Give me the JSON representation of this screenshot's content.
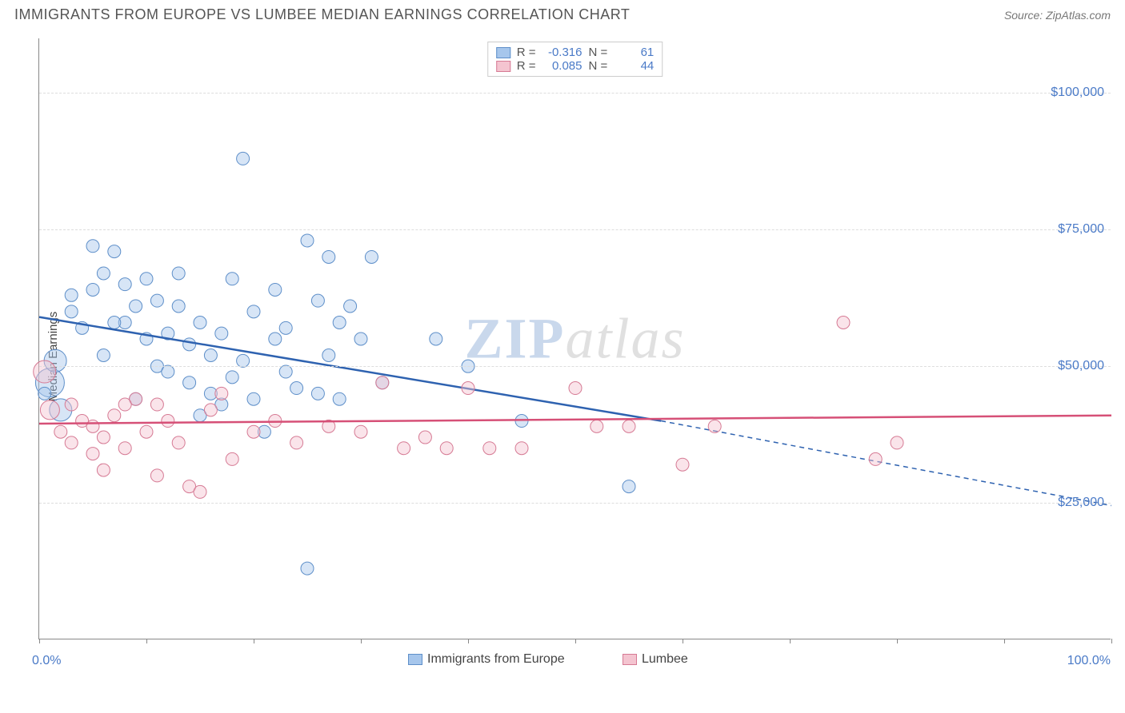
{
  "header": {
    "title": "IMMIGRANTS FROM EUROPE VS LUMBEE MEDIAN EARNINGS CORRELATION CHART",
    "source": "Source: ZipAtlas.com"
  },
  "watermark": {
    "zip": "ZIP",
    "atlas": "atlas"
  },
  "chart": {
    "type": "scatter",
    "ylabel": "Median Earnings",
    "xlim": [
      0,
      100
    ],
    "ylim": [
      0,
      110000
    ],
    "background_color": "#ffffff",
    "grid_color": "#dddddd",
    "axis_color": "#888888",
    "yticks": [
      {
        "value": 25000,
        "label": "$25,000"
      },
      {
        "value": 50000,
        "label": "$50,000"
      },
      {
        "value": 75000,
        "label": "$75,000"
      },
      {
        "value": 100000,
        "label": "$100,000"
      }
    ],
    "xticks": [
      0,
      10,
      20,
      30,
      40,
      50,
      60,
      70,
      80,
      90,
      100
    ],
    "xaxis_labels": {
      "min": "0.0%",
      "max": "100.0%"
    },
    "point_radius": 8,
    "point_opacity": 0.45,
    "series": [
      {
        "name": "Immigrants from Europe",
        "fill": "#a6c6ec",
        "stroke": "#5e8fc9",
        "line_color": "#2e62b0",
        "trend": {
          "x1": 0,
          "y1": 59000,
          "x2": 58,
          "y2": 40000,
          "extend_x2": 100,
          "extend_y2": 24500
        },
        "points": [
          {
            "x": 1,
            "y": 47000,
            "r": 18
          },
          {
            "x": 1.5,
            "y": 51000,
            "r": 14
          },
          {
            "x": 2,
            "y": 42000,
            "r": 14
          },
          {
            "x": 0.5,
            "y": 45000
          },
          {
            "x": 3,
            "y": 63000
          },
          {
            "x": 3,
            "y": 60000
          },
          {
            "x": 4,
            "y": 57000
          },
          {
            "x": 5,
            "y": 72000
          },
          {
            "x": 5,
            "y": 64000
          },
          {
            "x": 6,
            "y": 67000
          },
          {
            "x": 7,
            "y": 71000
          },
          {
            "x": 8,
            "y": 65000
          },
          {
            "x": 8,
            "y": 58000
          },
          {
            "x": 9,
            "y": 61000
          },
          {
            "x": 10,
            "y": 66000
          },
          {
            "x": 10,
            "y": 55000
          },
          {
            "x": 11,
            "y": 50000
          },
          {
            "x": 12,
            "y": 56000
          },
          {
            "x": 12,
            "y": 49000
          },
          {
            "x": 13,
            "y": 61000
          },
          {
            "x": 14,
            "y": 54000
          },
          {
            "x": 14,
            "y": 47000
          },
          {
            "x": 15,
            "y": 58000
          },
          {
            "x": 16,
            "y": 52000
          },
          {
            "x": 16,
            "y": 45000
          },
          {
            "x": 17,
            "y": 56000
          },
          {
            "x": 18,
            "y": 48000
          },
          {
            "x": 19,
            "y": 88000
          },
          {
            "x": 19,
            "y": 51000
          },
          {
            "x": 20,
            "y": 60000
          },
          {
            "x": 20,
            "y": 44000
          },
          {
            "x": 21,
            "y": 38000
          },
          {
            "x": 22,
            "y": 64000
          },
          {
            "x": 22,
            "y": 55000
          },
          {
            "x": 23,
            "y": 49000
          },
          {
            "x": 24,
            "y": 46000
          },
          {
            "x": 25,
            "y": 13000
          },
          {
            "x": 25,
            "y": 73000
          },
          {
            "x": 26,
            "y": 62000
          },
          {
            "x": 27,
            "y": 52000
          },
          {
            "x": 27,
            "y": 70000
          },
          {
            "x": 28,
            "y": 44000
          },
          {
            "x": 29,
            "y": 61000
          },
          {
            "x": 30,
            "y": 55000
          },
          {
            "x": 31,
            "y": 70000
          },
          {
            "x": 32,
            "y": 47000
          },
          {
            "x": 37,
            "y": 55000
          },
          {
            "x": 40,
            "y": 50000
          },
          {
            "x": 45,
            "y": 40000
          },
          {
            "x": 55,
            "y": 28000
          },
          {
            "x": 15,
            "y": 41000
          },
          {
            "x": 6,
            "y": 52000
          },
          {
            "x": 9,
            "y": 44000
          },
          {
            "x": 11,
            "y": 62000
          },
          {
            "x": 13,
            "y": 67000
          },
          {
            "x": 17,
            "y": 43000
          },
          {
            "x": 23,
            "y": 57000
          },
          {
            "x": 26,
            "y": 45000
          },
          {
            "x": 28,
            "y": 58000
          },
          {
            "x": 18,
            "y": 66000
          },
          {
            "x": 7,
            "y": 58000
          }
        ]
      },
      {
        "name": "Lumbee",
        "fill": "#f4c4d0",
        "stroke": "#d67a94",
        "line_color": "#d65077",
        "trend": {
          "x1": 0,
          "y1": 39500,
          "x2": 100,
          "y2": 41000
        },
        "points": [
          {
            "x": 0.5,
            "y": 49000,
            "r": 14
          },
          {
            "x": 1,
            "y": 42000,
            "r": 12
          },
          {
            "x": 2,
            "y": 38000
          },
          {
            "x": 3,
            "y": 36000
          },
          {
            "x": 3,
            "y": 43000
          },
          {
            "x": 4,
            "y": 40000
          },
          {
            "x": 5,
            "y": 34000
          },
          {
            "x": 5,
            "y": 39000
          },
          {
            "x": 6,
            "y": 37000
          },
          {
            "x": 7,
            "y": 41000
          },
          {
            "x": 8,
            "y": 35000
          },
          {
            "x": 9,
            "y": 44000
          },
          {
            "x": 10,
            "y": 38000
          },
          {
            "x": 11,
            "y": 30000
          },
          {
            "x": 12,
            "y": 40000
          },
          {
            "x": 13,
            "y": 36000
          },
          {
            "x": 14,
            "y": 28000
          },
          {
            "x": 15,
            "y": 27000
          },
          {
            "x": 16,
            "y": 42000
          },
          {
            "x": 17,
            "y": 45000
          },
          {
            "x": 18,
            "y": 33000
          },
          {
            "x": 20,
            "y": 38000
          },
          {
            "x": 22,
            "y": 40000
          },
          {
            "x": 24,
            "y": 36000
          },
          {
            "x": 27,
            "y": 39000
          },
          {
            "x": 30,
            "y": 38000
          },
          {
            "x": 32,
            "y": 47000
          },
          {
            "x": 34,
            "y": 35000
          },
          {
            "x": 36,
            "y": 37000
          },
          {
            "x": 38,
            "y": 35000
          },
          {
            "x": 40,
            "y": 46000
          },
          {
            "x": 42,
            "y": 35000
          },
          {
            "x": 45,
            "y": 35000
          },
          {
            "x": 50,
            "y": 46000
          },
          {
            "x": 52,
            "y": 39000
          },
          {
            "x": 55,
            "y": 39000
          },
          {
            "x": 60,
            "y": 32000
          },
          {
            "x": 63,
            "y": 39000
          },
          {
            "x": 75,
            "y": 58000
          },
          {
            "x": 78,
            "y": 33000
          },
          {
            "x": 80,
            "y": 36000
          },
          {
            "x": 8,
            "y": 43000
          },
          {
            "x": 6,
            "y": 31000
          },
          {
            "x": 11,
            "y": 43000
          }
        ]
      }
    ],
    "legend_top": [
      {
        "r_label": "R =",
        "r_value": "-0.316",
        "n_label": "N =",
        "n_value": "61",
        "swatch_fill": "#a6c6ec",
        "swatch_stroke": "#5e8fc9"
      },
      {
        "r_label": "R =",
        "r_value": "0.085",
        "n_label": "N =",
        "n_value": "44",
        "swatch_fill": "#f4c4d0",
        "swatch_stroke": "#d67a94"
      }
    ],
    "legend_bottom": [
      {
        "label": "Immigrants from Europe",
        "swatch_fill": "#a6c6ec",
        "swatch_stroke": "#5e8fc9"
      },
      {
        "label": "Lumbee",
        "swatch_fill": "#f4c4d0",
        "swatch_stroke": "#d67a94"
      }
    ]
  }
}
